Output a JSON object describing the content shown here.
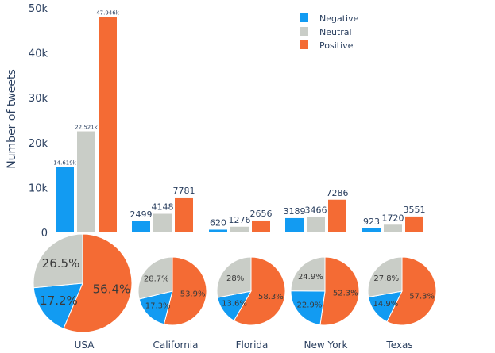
{
  "chart_data": [
    {
      "type": "bar",
      "ylabel": "Number of tweets",
      "xlabel": "",
      "ylim": [
        0,
        50000
      ],
      "yticks": [
        0,
        10000,
        20000,
        30000,
        40000,
        50000
      ],
      "ytick_labels": [
        "0",
        "10k",
        "20k",
        "30k",
        "40k",
        "50k"
      ],
      "categories": [
        "USA",
        "California",
        "Florida",
        "New York",
        "Texas"
      ],
      "series": [
        {
          "name": "Negative",
          "color": "#129BF2",
          "values": [
            14619,
            2499,
            620,
            3189,
            923
          ],
          "labels": [
            "14.619k",
            "2499",
            "620",
            "3189",
            "923"
          ]
        },
        {
          "name": "Neutral",
          "color": "#C9CDC7",
          "values": [
            22521,
            4148,
            1276,
            3466,
            1720
          ],
          "labels": [
            "22.521k",
            "4148",
            "1276",
            "3466",
            "1720"
          ]
        },
        {
          "name": "Positive",
          "color": "#F46B34",
          "values": [
            47946,
            7781,
            2656,
            7286,
            3551
          ],
          "labels": [
            "47.946k",
            "7781",
            "2656",
            "7286",
            "3551"
          ]
        }
      ],
      "legend_position": "top-right"
    },
    {
      "type": "pie",
      "charts": [
        {
          "category": "USA",
          "values": [
            17.2,
            26.5,
            56.4
          ],
          "labels": [
            "17.2%",
            "26.5%",
            "56.4%"
          ]
        },
        {
          "category": "California",
          "values": [
            17.3,
            28.7,
            53.9
          ],
          "labels": [
            "17.3%",
            "28.7%",
            "53.9%"
          ]
        },
        {
          "category": "Florida",
          "values": [
            13.6,
            28.0,
            58.3
          ],
          "labels": [
            "13.6%",
            "28%",
            "58.3%"
          ]
        },
        {
          "category": "New York",
          "values": [
            22.9,
            24.9,
            52.3
          ],
          "labels": [
            "22.9%",
            "24.9%",
            "52.3%"
          ]
        },
        {
          "category": "Texas",
          "values": [
            14.9,
            27.8,
            57.3
          ],
          "labels": [
            "14.9%",
            "27.8%",
            "57.3%"
          ]
        }
      ],
      "slice_order": [
        "Negative",
        "Neutral",
        "Positive"
      ]
    }
  ]
}
